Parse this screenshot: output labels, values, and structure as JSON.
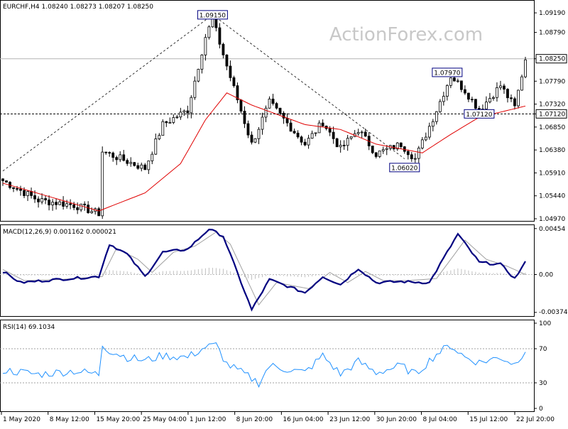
{
  "chart_data": [
    {
      "type": "candlestick",
      "symbol_label": "EURCHF,H4",
      "ohlc_label": "1.08240 1.08273 1.08207 1.08250",
      "watermark": "ActionForex.com",
      "ylim": [
        1.0497,
        1.0925
      ],
      "y_ticks": [
        "1.09190",
        "1.08790",
        "1.08250",
        "1.07790",
        "1.07320",
        "1.07120",
        "1.06850",
        "1.06380",
        "1.05910",
        "1.05440",
        "1.04970"
      ],
      "x_ticks": [
        "1 May 2020",
        "8 May 12:00",
        "15 May 20:00",
        "25 May 04:00",
        "1 Jun 12:00",
        "8 Jun 20:00",
        "16 Jun 04:00",
        "23 Jun 12:00",
        "30 Jun 20:00",
        "8 Jul 04:00",
        "15 Jul 12:00",
        "22 Jul 20:00"
      ],
      "current_price": "1.08250",
      "support_level": "1.07120",
      "annotations": [
        {
          "label": "1.09150",
          "bar": 59
        },
        {
          "label": "1.07970",
          "bar": 125
        },
        {
          "label": "1.07120",
          "bar": 134
        },
        {
          "label": "1.06020",
          "bar": 113
        }
      ],
      "close_anchors": [
        [
          0,
          1.0575
        ],
        [
          10,
          1.0535
        ],
        [
          20,
          1.0525
        ],
        [
          27,
          1.0508
        ],
        [
          28,
          1.0635
        ],
        [
          40,
          1.06
        ],
        [
          45,
          1.069
        ],
        [
          52,
          1.072
        ],
        [
          57,
          1.087
        ],
        [
          59,
          1.0905
        ],
        [
          63,
          1.081
        ],
        [
          70,
          1.065
        ],
        [
          75,
          1.0735
        ],
        [
          85,
          1.065
        ],
        [
          90,
          1.0695
        ],
        [
          95,
          1.064
        ],
        [
          100,
          1.068
        ],
        [
          105,
          1.063
        ],
        [
          112,
          1.065
        ],
        [
          116,
          1.062
        ],
        [
          122,
          1.072
        ],
        [
          126,
          1.079
        ],
        [
          130,
          1.076
        ],
        [
          134,
          1.072
        ],
        [
          140,
          1.077
        ],
        [
          144,
          1.0725
        ],
        [
          147,
          1.0825
        ]
      ],
      "sma_anchors": [
        [
          0,
          1.057
        ],
        [
          27,
          1.0513
        ],
        [
          40,
          1.055
        ],
        [
          50,
          1.061
        ],
        [
          57,
          1.07
        ],
        [
          63,
          1.0755
        ],
        [
          70,
          1.073
        ],
        [
          85,
          1.069
        ],
        [
          95,
          1.068
        ],
        [
          105,
          1.065
        ],
        [
          118,
          1.0632
        ],
        [
          126,
          1.067
        ],
        [
          134,
          1.0705
        ],
        [
          147,
          1.0728
        ]
      ]
    },
    {
      "type": "line",
      "label": "MACD(12,26,9) 0.001162 0.000021",
      "ylim": [
        -0.0039,
        0.0046
      ],
      "y_ticks": [
        "0.00454",
        "0.00",
        "-0.003745"
      ],
      "macd_anchors": [
        [
          0,
          0.0003
        ],
        [
          5,
          -0.0008
        ],
        [
          15,
          -0.0005
        ],
        [
          27,
          -0.0002
        ],
        [
          30,
          0.003
        ],
        [
          35,
          0.002
        ],
        [
          40,
          -0.0002
        ],
        [
          45,
          0.0022
        ],
        [
          52,
          0.0025
        ],
        [
          58,
          0.0045
        ],
        [
          62,
          0.0038
        ],
        [
          70,
          -0.0035
        ],
        [
          75,
          -0.0005
        ],
        [
          85,
          -0.0018
        ],
        [
          90,
          -0.0002
        ],
        [
          95,
          -0.001
        ],
        [
          100,
          0.0006
        ],
        [
          105,
          -0.0008
        ],
        [
          112,
          -0.0007
        ],
        [
          120,
          -0.0008
        ],
        [
          128,
          0.004
        ],
        [
          134,
          0.0012
        ],
        [
          140,
          0.001
        ],
        [
          144,
          -0.0004
        ],
        [
          147,
          0.0012
        ]
      ],
      "signal_anchors": [
        [
          0,
          0.0005
        ],
        [
          6,
          -0.0006
        ],
        [
          16,
          -0.0005
        ],
        [
          28,
          -0.0002
        ],
        [
          32,
          0.0026
        ],
        [
          38,
          0.0015
        ],
        [
          42,
          0.0002
        ],
        [
          48,
          0.0022
        ],
        [
          54,
          0.0028
        ],
        [
          60,
          0.0042
        ],
        [
          64,
          0.003
        ],
        [
          72,
          -0.003
        ],
        [
          77,
          -0.0008
        ],
        [
          86,
          -0.0014
        ],
        [
          92,
          0.0002
        ],
        [
          97,
          -0.0008
        ],
        [
          102,
          0.0003
        ],
        [
          107,
          -0.0006
        ],
        [
          114,
          -0.0006
        ],
        [
          122,
          -0.0004
        ],
        [
          130,
          0.0034
        ],
        [
          136,
          0.0015
        ],
        [
          142,
          0.0008
        ],
        [
          147,
          0.0
        ]
      ]
    },
    {
      "type": "line",
      "label": "RSI(14) 69.1034",
      "ylim": [
        0,
        100
      ],
      "y_ticks": [
        "100",
        "70",
        "30",
        "0"
      ],
      "reference_lines": [
        70,
        30
      ],
      "rsi_anchors": [
        [
          0,
          45
        ],
        [
          10,
          40
        ],
        [
          20,
          44
        ],
        [
          27,
          40
        ],
        [
          28,
          75
        ],
        [
          30,
          68
        ],
        [
          35,
          60
        ],
        [
          40,
          56
        ],
        [
          45,
          62
        ],
        [
          52,
          60
        ],
        [
          57,
          72
        ],
        [
          60,
          74
        ],
        [
          63,
          52
        ],
        [
          68,
          40
        ],
        [
          72,
          30
        ],
        [
          75,
          50
        ],
        [
          85,
          42
        ],
        [
          90,
          62
        ],
        [
          95,
          40
        ],
        [
          100,
          55
        ],
        [
          105,
          42
        ],
        [
          112,
          50
        ],
        [
          116,
          40
        ],
        [
          122,
          64
        ],
        [
          126,
          74
        ],
        [
          130,
          60
        ],
        [
          134,
          54
        ],
        [
          140,
          60
        ],
        [
          144,
          52
        ],
        [
          147,
          69
        ]
      ]
    }
  ]
}
